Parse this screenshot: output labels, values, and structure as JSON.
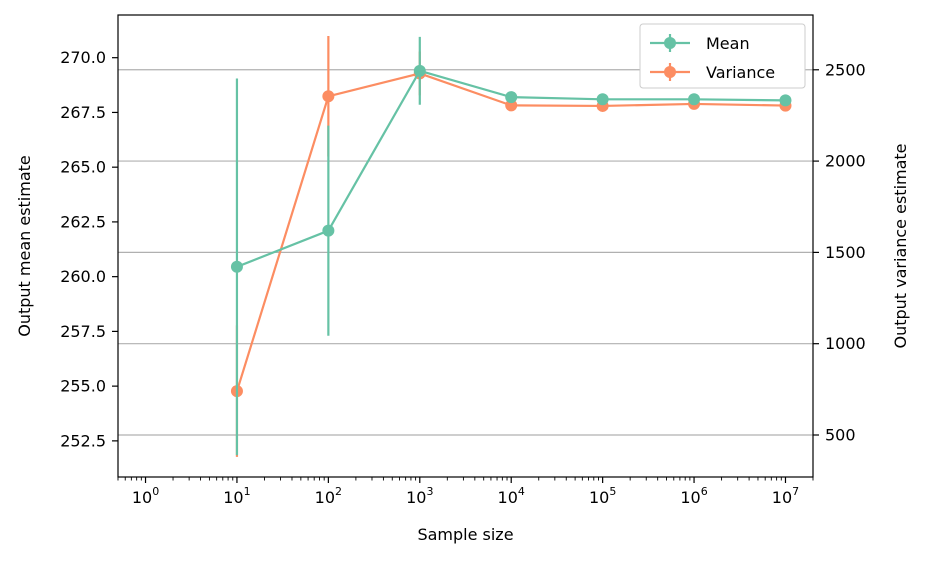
{
  "chart_data": {
    "type": "line",
    "xlabel": "Sample size",
    "ylabel_left": "Output mean estimate",
    "ylabel_right": "Output variance estimate",
    "x_scale": "log",
    "x": [
      10,
      100,
      1000,
      10000,
      100000,
      1000000,
      10000000
    ],
    "xlim": [
      0.5,
      20000000
    ],
    "x_ticks": [
      1,
      10,
      100,
      1000,
      10000,
      100000,
      1000000,
      10000000
    ],
    "x_tick_labels": [
      {
        "base": "10",
        "exp": "0"
      },
      {
        "base": "10",
        "exp": "1"
      },
      {
        "base": "10",
        "exp": "2"
      },
      {
        "base": "10",
        "exp": "3"
      },
      {
        "base": "10",
        "exp": "4"
      },
      {
        "base": "10",
        "exp": "5"
      },
      {
        "base": "10",
        "exp": "6"
      },
      {
        "base": "10",
        "exp": "7"
      }
    ],
    "ylim_left": [
      250.85,
      271.95
    ],
    "y_ticks_left": [
      252.5,
      255.0,
      257.5,
      260.0,
      262.5,
      265.0,
      267.5,
      270.0
    ],
    "y_tick_labels_left": [
      "252.5",
      "255.0",
      "257.5",
      "260.0",
      "262.5",
      "265.0",
      "267.5",
      "270.0"
    ],
    "ylim_right": [
      270,
      2800
    ],
    "y_ticks_right": [
      500,
      1000,
      1500,
      2000,
      2500
    ],
    "y_tick_labels_right": [
      "500",
      "1000",
      "1500",
      "2000",
      "2500"
    ],
    "grid": "horizontal lines at right-axis ticks",
    "legend_position": "top-right",
    "series": [
      {
        "name": "Mean",
        "axis": "left",
        "color": "#66c2a5",
        "values": [
          260.45,
          262.1,
          269.4,
          268.2,
          268.1,
          268.1,
          268.05
        ],
        "errors": [
          8.6,
          4.8,
          1.55,
          0.25,
          0.07,
          0.03,
          0.01
        ]
      },
      {
        "name": "Variance",
        "axis": "right",
        "color": "#fc8d62",
        "values": [
          740,
          2355,
          2480,
          2305,
          2302,
          2313,
          2304
        ],
        "errors": [
          360,
          330,
          120,
          14,
          4,
          1.5,
          0.5
        ]
      }
    ]
  }
}
